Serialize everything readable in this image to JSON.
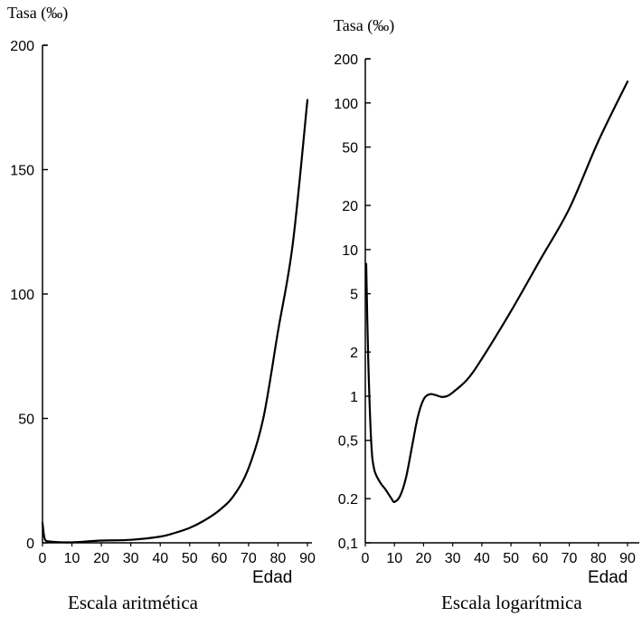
{
  "chart_data": [
    {
      "type": "line",
      "ylabel": "Tasa (‰)",
      "xlabel": "Edad",
      "caption": "Escala aritmética",
      "xlim": [
        0,
        90
      ],
      "ylim": [
        0,
        200
      ],
      "yscale": "linear",
      "x_ticks": [
        "0",
        "10",
        "20",
        "30",
        "40",
        "50",
        "60",
        "70",
        "80",
        "90"
      ],
      "y_ticks": [
        "0",
        "50",
        "100",
        "150",
        "200"
      ],
      "grid": false,
      "series": [
        {
          "x": [
            0,
            0.5,
            1,
            2,
            5,
            10,
            20,
            30,
            40,
            45,
            50,
            55,
            60,
            65,
            70,
            75,
            80,
            85,
            90
          ],
          "y": [
            8,
            3,
            1,
            0.6,
            0.3,
            0.2,
            0.9,
            1.2,
            2.5,
            4,
            6,
            9,
            13,
            19,
            30,
            50,
            85,
            120,
            178
          ]
        }
      ]
    },
    {
      "type": "line",
      "ylabel": "Tasa (‰)",
      "xlabel": "Edad",
      "caption": "Escala logarítmica",
      "xlim": [
        0,
        90
      ],
      "ylim": [
        0.1,
        200
      ],
      "yscale": "log",
      "x_ticks": [
        "0",
        "10",
        "20",
        "30",
        "40",
        "50",
        "60",
        "70",
        "80",
        "90"
      ],
      "y_ticks": [
        "0,1",
        "0.2",
        "0,5",
        "1",
        "2",
        "5",
        "10",
        "20",
        "50",
        "100",
        "200"
      ],
      "y_tick_values": [
        0.1,
        0.2,
        0.5,
        1,
        2,
        5,
        10,
        20,
        50,
        100,
        200
      ],
      "grid": false,
      "series": [
        {
          "x": [
            0.3,
            1,
            2,
            3,
            5,
            7,
            9,
            10,
            12,
            14,
            16,
            18,
            20,
            22,
            24,
            26,
            28,
            30,
            35,
            40,
            50,
            60,
            70,
            80,
            90
          ],
          "y": [
            8,
            1.8,
            0.5,
            0.32,
            0.26,
            0.23,
            0.2,
            0.19,
            0.21,
            0.28,
            0.45,
            0.72,
            0.95,
            1.03,
            1.02,
            0.99,
            1.0,
            1.06,
            1.3,
            1.8,
            3.8,
            8.5,
            19,
            55,
            140
          ]
        }
      ]
    }
  ]
}
